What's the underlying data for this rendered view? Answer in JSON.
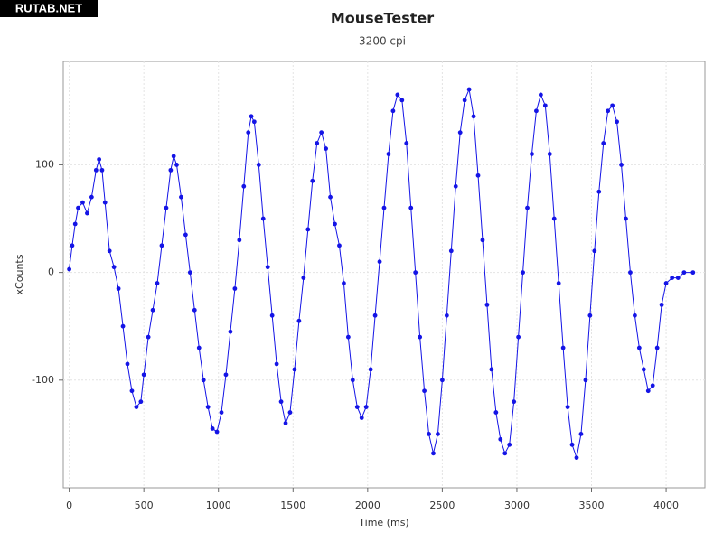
{
  "badge": "RUTAB.NET",
  "chart_data": {
    "type": "scatter",
    "title": "MouseTester",
    "subtitle": "3200 cpi",
    "x_label": "Time (ms)",
    "y_label": "xCounts",
    "x": [
      0,
      20,
      40,
      60,
      90,
      120,
      150,
      180,
      200,
      220,
      240,
      270,
      300,
      330,
      360,
      390,
      420,
      450,
      480,
      500,
      530,
      560,
      590,
      620,
      650,
      680,
      700,
      720,
      750,
      780,
      810,
      840,
      870,
      900,
      930,
      960,
      990,
      1020,
      1050,
      1080,
      1110,
      1140,
      1170,
      1200,
      1220,
      1240,
      1270,
      1300,
      1330,
      1360,
      1390,
      1420,
      1450,
      1480,
      1510,
      1540,
      1570,
      1600,
      1630,
      1660,
      1690,
      1720,
      1750,
      1780,
      1810,
      1840,
      1870,
      1900,
      1930,
      1960,
      1990,
      2020,
      2050,
      2080,
      2110,
      2140,
      2170,
      2200,
      2230,
      2260,
      2290,
      2320,
      2350,
      2380,
      2410,
      2440,
      2470,
      2500,
      2530,
      2560,
      2590,
      2620,
      2650,
      2680,
      2710,
      2740,
      2770,
      2800,
      2830,
      2860,
      2890,
      2920,
      2950,
      2980,
      3010,
      3040,
      3070,
      3100,
      3130,
      3160,
      3190,
      3220,
      3250,
      3280,
      3310,
      3340,
      3370,
      3400,
      3430,
      3460,
      3490,
      3520,
      3550,
      3580,
      3610,
      3640,
      3670,
      3700,
      3730,
      3760,
      3790,
      3820,
      3850,
      3880,
      3910,
      3940,
      3970,
      4000,
      4040,
      4080,
      4120,
      4180
    ],
    "values": [
      3,
      25,
      45,
      60,
      65,
      55,
      70,
      95,
      105,
      95,
      65,
      20,
      5,
      -15,
      -50,
      -85,
      -110,
      -125,
      -120,
      -95,
      -60,
      -35,
      -10,
      25,
      60,
      95,
      108,
      100,
      70,
      35,
      0,
      -35,
      -70,
      -100,
      -125,
      -145,
      -148,
      -130,
      -95,
      -55,
      -15,
      30,
      80,
      130,
      145,
      140,
      100,
      50,
      5,
      -40,
      -85,
      -120,
      -140,
      -130,
      -90,
      -45,
      -5,
      40,
      85,
      120,
      130,
      115,
      70,
      45,
      25,
      -10,
      -60,
      -100,
      -125,
      -135,
      -125,
      -90,
      -40,
      10,
      60,
      110,
      150,
      165,
      160,
      120,
      60,
      0,
      -60,
      -110,
      -150,
      -168,
      -150,
      -100,
      -40,
      20,
      80,
      130,
      160,
      170,
      145,
      90,
      30,
      -30,
      -90,
      -130,
      -155,
      -168,
      -160,
      -120,
      -60,
      0,
      60,
      110,
      150,
      165,
      155,
      110,
      50,
      -10,
      -70,
      -125,
      -160,
      -172,
      -150,
      -100,
      -40,
      20,
      75,
      120,
      150,
      155,
      140,
      100,
      50,
      0,
      -40,
      -70,
      -90,
      -110,
      -105,
      -70,
      -30,
      -10,
      -5,
      -5,
      0,
      0
    ],
    "color": "#1414e6",
    "line": true,
    "grid": true,
    "xlim": [
      -40,
      4260
    ],
    "ylim": [
      -200,
      196
    ],
    "xticks": [
      0,
      500,
      1000,
      1500,
      2000,
      2500,
      3000,
      3500,
      4000
    ],
    "yticks": [
      -100,
      0,
      100
    ]
  }
}
